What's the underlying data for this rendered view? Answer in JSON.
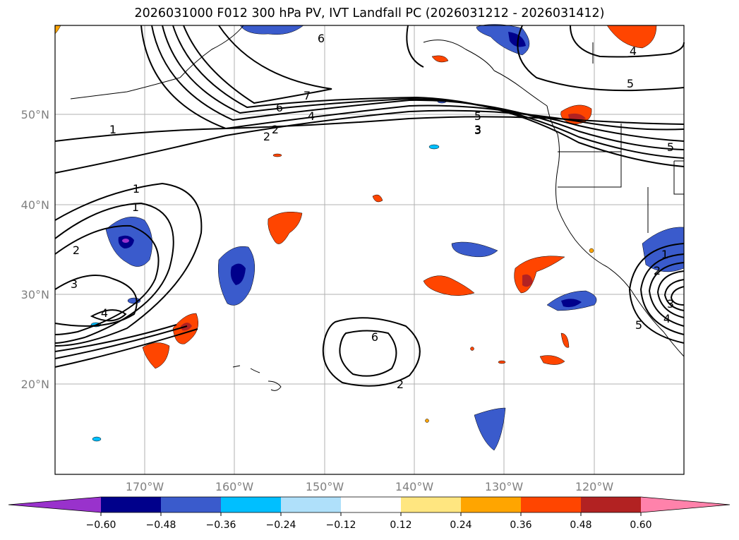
{
  "title": "2026031000 F012 300 hPa PV, IVT Landfall PC (2026031212 - 2026031412)",
  "map": {
    "lat_labels": [
      "50°N",
      "40°N",
      "30°N",
      "20°N"
    ],
    "lon_labels": [
      "170°W",
      "160°W",
      "150°W",
      "140°W",
      "130°W",
      "120°W"
    ]
  },
  "contour_labels": [
    "1",
    "2",
    "3",
    "4",
    "5",
    "6",
    "7",
    "6",
    "5",
    "4",
    "3",
    "2",
    "1",
    "1",
    "2",
    "3",
    "4",
    "5",
    "6",
    "2",
    "1",
    "2",
    "3",
    "4",
    "5",
    "6",
    "4",
    "5",
    "6",
    "4"
  ],
  "colorbar": {
    "colors": [
      "#9932cc",
      "#00008b",
      "#3a5bcc",
      "#00bfff",
      "#afe0fa",
      "#ffffff",
      "#ffe680",
      "#ffa500",
      "#ff4500",
      "#b22222",
      "#ff82ab"
    ],
    "tick_labels": [
      "−0.60",
      "−0.48",
      "−0.36",
      "−0.24",
      "−0.12",
      "0.12",
      "0.24",
      "0.36",
      "0.48",
      "0.60"
    ]
  }
}
